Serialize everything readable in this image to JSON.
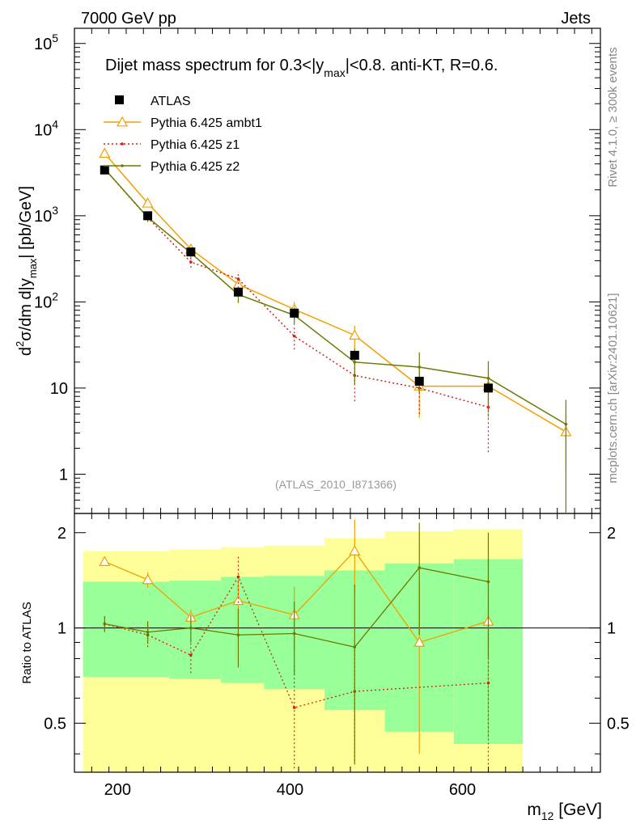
{
  "header": {
    "left_label": "7000 GeV pp",
    "right_label": "Jets"
  },
  "side_labels": {
    "rivet": "Rivet 4.1.0, ≥ 300k events",
    "mcplots": "mcplots.cern.ch [arXiv:2401.10621]"
  },
  "chart_data": {
    "type": "line",
    "title": "Dijet mass spectrum for 0.3<|y_max|<0.8.  anti-KT, R=0.6.",
    "title_parts": {
      "prefix": "Dijet mass spectrum for 0.3<|y",
      "sub": "max",
      "suffix": "|<0.8.  anti-KT, R=0.6."
    },
    "analysis_id": "(ATLAS_2010_I871366)",
    "xlabel": {
      "base": "m",
      "sub": "12",
      "unit": " [GeV]"
    },
    "ylabel_main": {
      "p1": "d",
      "sup": "2",
      "p2": "σ/dm d|y",
      "sub": "max",
      "p3": "| [pb/GeV]"
    },
    "ylabel_ratio": "Ratio to ATLAS",
    "xlim": [
      150,
      760
    ],
    "ylim_main": [
      0.35,
      150000
    ],
    "yscale_main": "log",
    "ylim_ratio": [
      0.35,
      2.3
    ],
    "yscale_ratio": "log",
    "x_ticks": [
      200,
      400,
      600
    ],
    "x_tick_labels": [
      "200",
      "400",
      "600"
    ],
    "y_ticks_main": [
      {
        "value": 1,
        "base": "1",
        "exp": ""
      },
      {
        "value": 10,
        "base": "10",
        "exp": ""
      },
      {
        "value": 100,
        "base": "10",
        "exp": "2"
      },
      {
        "value": 1000,
        "base": "10",
        "exp": "3"
      },
      {
        "value": 10000,
        "base": "10",
        "exp": "4"
      },
      {
        "value": 100000,
        "base": "10",
        "exp": "5"
      }
    ],
    "y_ticks_ratio": [
      {
        "value": 0.5,
        "label": "0.5"
      },
      {
        "value": 1,
        "label": "1"
      },
      {
        "value": 2,
        "label": "2"
      }
    ],
    "legend_position": "top-left",
    "atlas": {
      "name": "ATLAS",
      "color": "#000000",
      "points": [
        {
          "x": 185,
          "y": 3400,
          "bins": [
            160,
            210
          ]
        },
        {
          "x": 235,
          "y": 1000,
          "bins": [
            210,
            260
          ]
        },
        {
          "x": 285,
          "y": 380,
          "bins": [
            260,
            310
          ]
        },
        {
          "x": 340,
          "y": 130,
          "bins": [
            310,
            370
          ]
        },
        {
          "x": 405,
          "y": 74,
          "bins": [
            370,
            440
          ]
        },
        {
          "x": 475,
          "y": 24,
          "bins": [
            440,
            510
          ]
        },
        {
          "x": 550,
          "y": 12,
          "bins": [
            510,
            590
          ]
        },
        {
          "x": 630,
          "y": 10,
          "bins": [
            590,
            670
          ]
        }
      ]
    },
    "series": [
      {
        "name": "Pythia 6.425 ambt1",
        "color": "#f0a000",
        "style": "solid-triangle",
        "points": [
          {
            "x": 185,
            "y": 5300,
            "err": 350
          },
          {
            "x": 235,
            "y": 1400,
            "err": 130
          },
          {
            "x": 285,
            "y": 410,
            "err": 50
          },
          {
            "x": 340,
            "y": 160,
            "err": 30
          },
          {
            "x": 405,
            "y": 82,
            "err": 18
          },
          {
            "x": 475,
            "y": 41,
            "err": 12
          },
          {
            "x": 550,
            "y": 10.5,
            "err": 6
          },
          {
            "x": 630,
            "y": 10.5,
            "err": 6
          },
          {
            "x": 720,
            "y": 3.1,
            "err": 2
          }
        ],
        "ratio": [
          {
            "x": 185,
            "r": 1.62,
            "err": 0.05
          },
          {
            "x": 235,
            "r": 1.42,
            "err": 0.08
          },
          {
            "x": 285,
            "r": 1.08,
            "err": 0.06
          },
          {
            "x": 340,
            "r": 1.22,
            "err": 0.2
          },
          {
            "x": 405,
            "r": 1.1,
            "err": 0.25
          },
          {
            "x": 475,
            "r": 1.75,
            "err": 0.45
          },
          {
            "x": 550,
            "r": 0.9,
            "err": 0.5
          },
          {
            "x": 630,
            "r": 1.05,
            "err": 0.6
          }
        ]
      },
      {
        "name": "Pythia 6.425 z1",
        "color": "#d62010",
        "style": "dotted-dot",
        "points": [
          {
            "x": 185,
            "y": 3500,
            "err": 250
          },
          {
            "x": 235,
            "y": 950,
            "err": 100
          },
          {
            "x": 285,
            "y": 290,
            "err": 40
          },
          {
            "x": 340,
            "y": 185,
            "err": 40
          },
          {
            "x": 405,
            "y": 40,
            "err": 12
          },
          {
            "x": 475,
            "y": 14,
            "err": 7
          },
          {
            "x": 550,
            "y": 10,
            "err": 5
          },
          {
            "x": 630,
            "y": 6,
            "err": 4.2
          }
        ],
        "ratio": [
          {
            "x": 185,
            "r": 1.03,
            "err": 0.05
          },
          {
            "x": 235,
            "r": 0.95,
            "err": 0.08
          },
          {
            "x": 285,
            "r": 0.82,
            "err": 0.1
          },
          {
            "x": 340,
            "r": 1.45,
            "err": 0.25
          },
          {
            "x": 405,
            "r": 0.56,
            "err": 0.2
          },
          {
            "x": 475,
            "r": 0.63,
            "err": 0.25
          },
          {
            "x": 630,
            "r": 0.67,
            "err": 0.3
          }
        ]
      },
      {
        "name": "Pythia 6.425 z2",
        "color": "#6b7a00",
        "style": "solid-dot",
        "points": [
          {
            "x": 185,
            "y": 3500,
            "err": 250
          },
          {
            "x": 235,
            "y": 960,
            "err": 100
          },
          {
            "x": 285,
            "y": 370,
            "err": 45
          },
          {
            "x": 340,
            "y": 122,
            "err": 25
          },
          {
            "x": 405,
            "y": 70,
            "err": 16
          },
          {
            "x": 475,
            "y": 20,
            "err": 9
          },
          {
            "x": 550,
            "y": 17.5,
            "err": 8.5
          },
          {
            "x": 630,
            "y": 13,
            "err": 7.5
          },
          {
            "x": 720,
            "y": 3.8,
            "err": 3.5
          }
        ],
        "ratio": [
          {
            "x": 185,
            "r": 1.03,
            "err": 0.06
          },
          {
            "x": 235,
            "r": 0.97,
            "err": 0.08
          },
          {
            "x": 285,
            "r": 1.0,
            "err": 0.1
          },
          {
            "x": 340,
            "r": 0.95,
            "err": 0.2
          },
          {
            "x": 405,
            "r": 0.96,
            "err": 0.25
          },
          {
            "x": 475,
            "r": 0.87,
            "err": 0.5
          },
          {
            "x": 550,
            "r": 1.55,
            "err": 0.6
          },
          {
            "x": 630,
            "r": 1.4,
            "err": 0.6
          }
        ]
      }
    ],
    "ratio_bands": {
      "inner_color": "#99ff99",
      "outer_color": "#ffff99",
      "bins": [
        {
          "x0": 160,
          "x1": 210,
          "inner": [
            0.7,
            1.4
          ],
          "outer": [
            0.35,
            1.75
          ]
        },
        {
          "x0": 210,
          "x1": 260,
          "inner": [
            0.7,
            1.4
          ],
          "outer": [
            0.35,
            1.75
          ]
        },
        {
          "x0": 260,
          "x1": 320,
          "inner": [
            0.69,
            1.41
          ],
          "outer": [
            0.35,
            1.77
          ]
        },
        {
          "x0": 320,
          "x1": 370,
          "inner": [
            0.67,
            1.45
          ],
          "outer": [
            0.35,
            1.8
          ]
        },
        {
          "x0": 370,
          "x1": 440,
          "inner": [
            0.64,
            1.46
          ],
          "outer": [
            0.35,
            1.82
          ]
        },
        {
          "x0": 440,
          "x1": 510,
          "inner": [
            0.55,
            1.52
          ],
          "outer": [
            0.35,
            1.92
          ]
        },
        {
          "x0": 510,
          "x1": 590,
          "inner": [
            0.47,
            1.6
          ],
          "outer": [
            0.35,
            2.02
          ]
        },
        {
          "x0": 590,
          "x1": 670,
          "inner": [
            0.43,
            1.65
          ],
          "outer": [
            0.35,
            2.05
          ]
        }
      ]
    }
  }
}
